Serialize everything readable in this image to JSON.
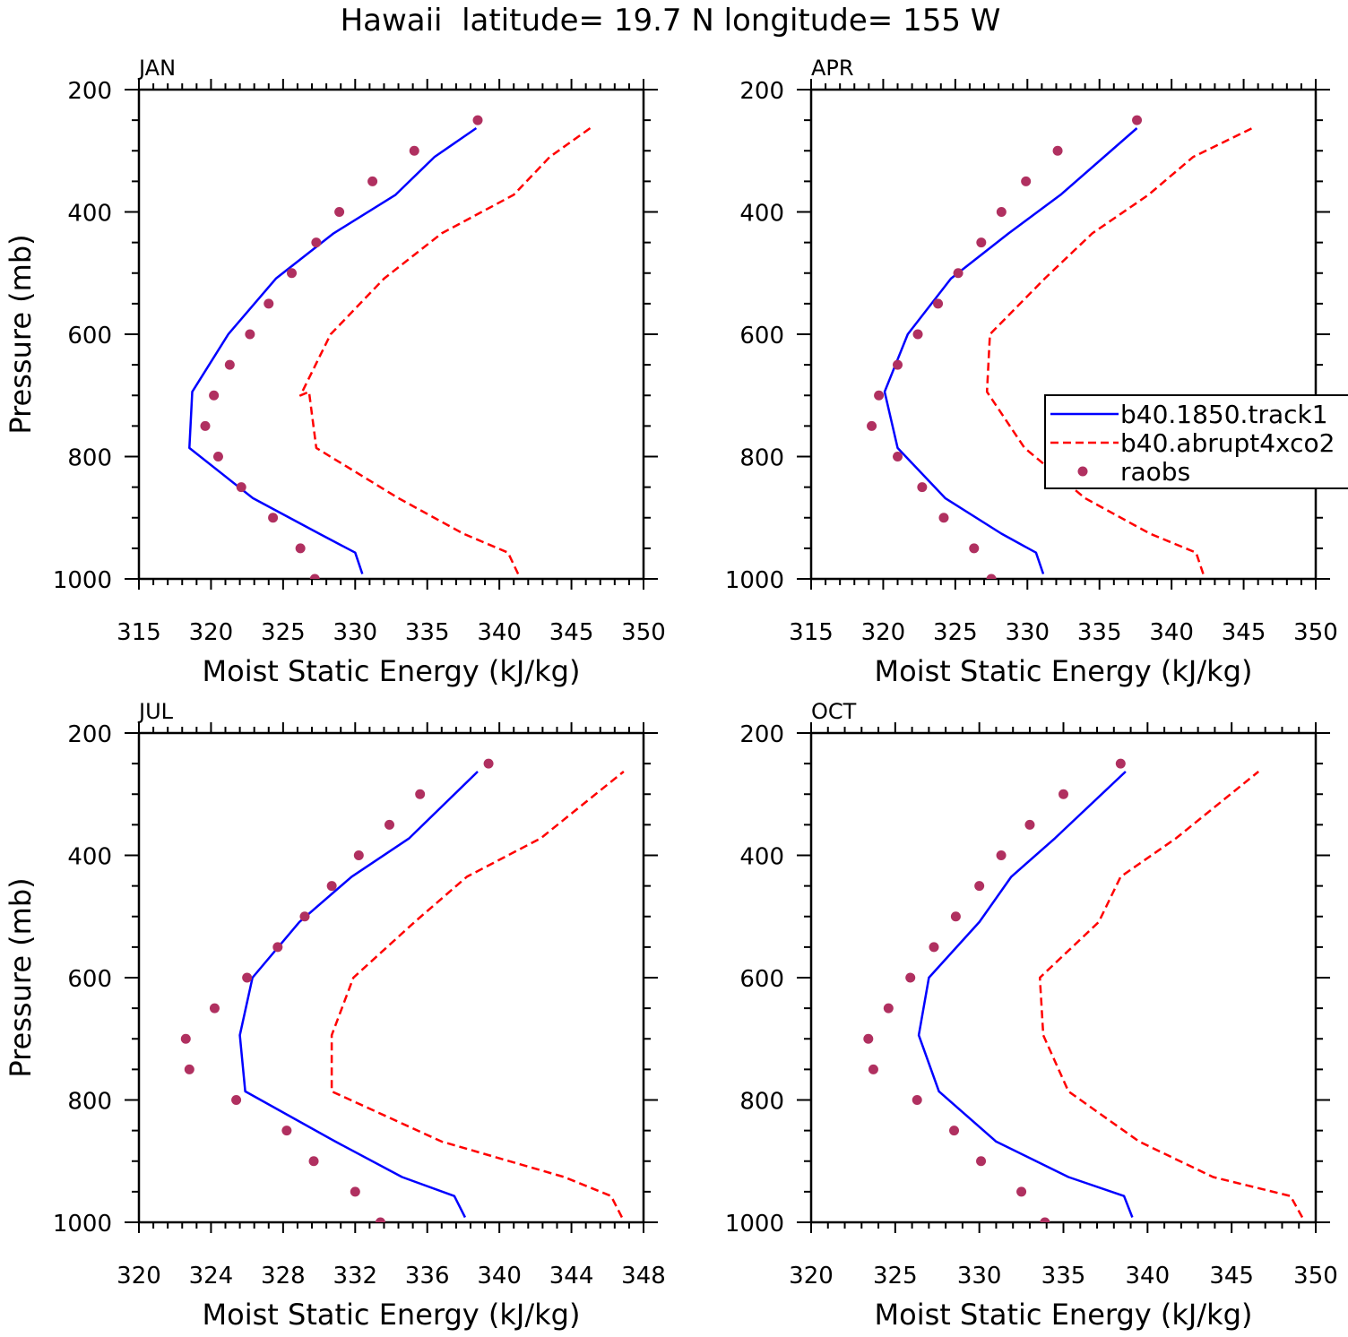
{
  "chart_data": {
    "title": "Hawaii  latitude= 19.7 N longitude= 155 W",
    "type": "line",
    "legend": {
      "placement": "right of APR panel",
      "entries": [
        {
          "label": "b40.1850.track1",
          "color": "#0000ff",
          "style": "solid"
        },
        {
          "label": "b40.abrupt4xco2",
          "color": "#ff0000",
          "style": "dashed"
        },
        {
          "label": "raobs",
          "color": "#b03060",
          "style": "dot"
        }
      ]
    },
    "panels": [
      {
        "label": "JAN",
        "xlabel": "Moist Static Energy (kJ/kg)",
        "ylabel": "Pressure (mb)",
        "xlim": [
          315,
          350
        ],
        "xticks": [
          315,
          320,
          325,
          330,
          335,
          340,
          345,
          350
        ],
        "ylim": [
          1000,
          200
        ],
        "yticks": [
          200,
          400,
          600,
          800,
          1000
        ],
        "series": [
          {
            "name": "b40.1850.track1",
            "x": [
              330.5,
              330.0,
              327.5,
              322.9,
              318.5,
              318.7,
              321.2,
              324.5,
              328.5,
              332.8,
              335.5,
              338.4
            ],
            "y": [
              992,
              957,
              926,
              868,
              786,
              694,
              600,
              509,
              435,
              372,
              310,
              263
            ]
          },
          {
            "name": "b40.abrupt4xco2",
            "x": [
              341.3,
              340.6,
              337.5,
              333.0,
              327.3,
              326.8,
              326.2,
              328.3,
              332.0,
              336.0,
              341.0,
              343.5,
              346.3
            ],
            "y": [
              992,
              957,
              926,
              868,
              786,
              694,
              700,
              600,
              509,
              435,
              372,
              310,
              263
            ]
          },
          {
            "name": "raobs",
            "x": [
              327.2,
              326.2,
              324.3,
              322.1,
              320.5,
              319.6,
              320.2,
              321.3,
              322.7,
              324.0,
              325.6,
              327.3,
              328.9,
              331.2,
              334.1,
              338.5
            ],
            "y": [
              1000,
              950,
              900,
              850,
              800,
              750,
              700,
              650,
              600,
              550,
              500,
              450,
              400,
              350,
              300,
              250
            ]
          }
        ]
      },
      {
        "label": "APR",
        "xlabel": "Moist Static Energy (kJ/kg)",
        "ylabel": "",
        "xlim": [
          315,
          350
        ],
        "xticks": [
          315,
          320,
          325,
          330,
          335,
          340,
          345,
          350
        ],
        "ylim": [
          1000,
          200
        ],
        "yticks": [
          200,
          400,
          600,
          800,
          1000
        ],
        "series": [
          {
            "name": "b40.1850.track1",
            "x": [
              331.1,
              330.6,
              328.2,
              324.3,
              321.0,
              320.1,
              321.7,
              324.7,
              328.7,
              332.3,
              337.6
            ],
            "y": [
              992,
              957,
              926,
              868,
              786,
              694,
              600,
              509,
              435,
              372,
              263
            ]
          },
          {
            "name": "b40.abrupt4xco2",
            "x": [
              342.2,
              341.7,
              338.5,
              334.0,
              329.8,
              327.2,
              327.4,
              331.2,
              334.5,
              338.4,
              341.5,
              345.6
            ],
            "y": [
              992,
              957,
              926,
              868,
              786,
              694,
              600,
              509,
              435,
              372,
              310,
              263
            ]
          },
          {
            "name": "raobs",
            "x": [
              327.5,
              326.3,
              324.2,
              322.7,
              321.0,
              319.2,
              319.7,
              321.0,
              322.4,
              323.8,
              325.2,
              326.8,
              328.2,
              329.9,
              332.1,
              337.6
            ],
            "y": [
              1000,
              950,
              900,
              850,
              800,
              750,
              700,
              650,
              600,
              550,
              500,
              450,
              400,
              350,
              300,
              250
            ]
          }
        ]
      },
      {
        "label": "JUL",
        "xlabel": "Moist Static Energy (kJ/kg)",
        "ylabel": "Pressure (mb)",
        "xlim": [
          320,
          348
        ],
        "xticks": [
          320,
          324,
          328,
          332,
          336,
          340,
          344,
          348
        ],
        "ylim": [
          1000,
          200
        ],
        "yticks": [
          200,
          400,
          600,
          800,
          1000
        ],
        "series": [
          {
            "name": "b40.1850.track1",
            "x": [
              338.1,
              337.5,
              334.6,
              330.9,
              325.9,
              325.6,
              326.3,
              328.9,
              331.8,
              335.0,
              338.8
            ],
            "y": [
              992,
              957,
              926,
              868,
              786,
              694,
              600,
              509,
              435,
              372,
              263
            ]
          },
          {
            "name": "b40.abrupt4xco2",
            "x": [
              346.8,
              346.2,
              343.6,
              336.8,
              330.7,
              330.7,
              331.9,
              335.3,
              338.2,
              342.3,
              346.9
            ],
            "y": [
              992,
              957,
              926,
              868,
              786,
              694,
              600,
              509,
              435,
              372,
              263
            ]
          },
          {
            "name": "raobs",
            "x": [
              333.4,
              332.0,
              329.7,
              328.2,
              325.4,
              322.8,
              322.6,
              324.2,
              326.0,
              327.7,
              329.2,
              330.7,
              332.2,
              333.9,
              335.6,
              339.4
            ],
            "y": [
              1000,
              950,
              900,
              850,
              800,
              750,
              700,
              650,
              600,
              550,
              500,
              450,
              400,
              350,
              300,
              250
            ]
          }
        ]
      },
      {
        "label": "OCT",
        "xlabel": "Moist Static Energy (kJ/kg)",
        "ylabel": "",
        "xlim": [
          320,
          350
        ],
        "xticks": [
          320,
          325,
          330,
          335,
          340,
          345,
          350
        ],
        "ylim": [
          1000,
          200
        ],
        "yticks": [
          200,
          400,
          600,
          800,
          1000
        ],
        "series": [
          {
            "name": "b40.1850.track1",
            "x": [
              339.1,
              338.6,
              335.3,
              331.0,
              327.6,
              326.4,
              327.0,
              330.0,
              331.9,
              334.5,
              338.7
            ],
            "y": [
              992,
              957,
              926,
              868,
              786,
              694,
              600,
              509,
              435,
              372,
              263
            ]
          },
          {
            "name": "b40.abrupt4xco2",
            "x": [
              349.2,
              348.5,
              343.9,
              339.5,
              335.3,
              333.8,
              333.6,
              337.1,
              338.4,
              341.7,
              346.6
            ],
            "y": [
              992,
              957,
              926,
              868,
              786,
              694,
              600,
              509,
              435,
              372,
              263
            ]
          },
          {
            "name": "raobs",
            "x": [
              333.9,
              332.5,
              330.1,
              328.5,
              326.3,
              323.7,
              323.4,
              324.6,
              325.9,
              327.3,
              328.6,
              330.0,
              331.3,
              333.0,
              335.0,
              338.4
            ],
            "y": [
              1000,
              950,
              900,
              850,
              800,
              750,
              700,
              650,
              600,
              550,
              500,
              450,
              400,
              350,
              300,
              250
            ]
          }
        ]
      }
    ]
  }
}
